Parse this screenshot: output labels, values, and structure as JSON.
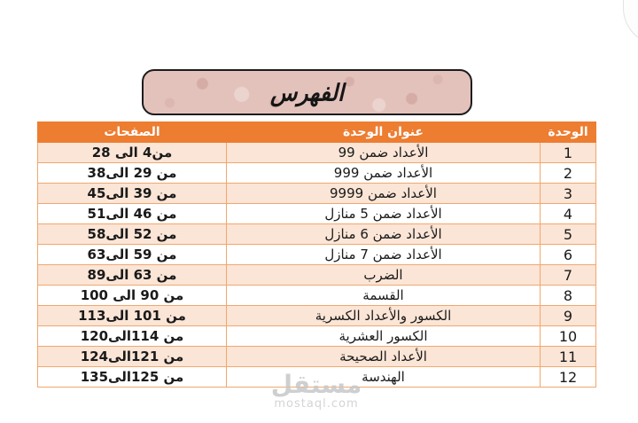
{
  "title_box": {
    "label": "الفهرس",
    "background": "#e3c2bb",
    "border_color": "#1c1c1c"
  },
  "table": {
    "accent_color": "#ED7D31",
    "band_color": "#FBE5D6",
    "border_color": "#F1A76E",
    "headers": {
      "unit": "الوحدة",
      "title": "عنوان الوحدة",
      "pages": "الصفحات"
    },
    "rows": [
      {
        "unit": "1",
        "title": "الأعداد ضمن 99",
        "pages": "من4 الى 28"
      },
      {
        "unit": "2",
        "title": "الأعداد ضمن 999",
        "pages": "من 29 الى38"
      },
      {
        "unit": "3",
        "title": "الأعداد ضمن 9999",
        "pages": "من 39 الى45"
      },
      {
        "unit": "4",
        "title": "الأعداد ضمن 5 منازل",
        "pages": "من 46 الى51"
      },
      {
        "unit": "5",
        "title": "الأعداد ضمن 6 منازل",
        "pages": "من 52 الى58"
      },
      {
        "unit": "6",
        "title": "الأعداد ضمن 7 منازل",
        "pages": "من 59 الى63"
      },
      {
        "unit": "7",
        "title": "الضرب",
        "pages": "من 63 الى89"
      },
      {
        "unit": "8",
        "title": "القسمة",
        "pages": "من 90 الى 100"
      },
      {
        "unit": "9",
        "title": "الكسور والأعداد الكسرية",
        "pages": "من 101 الى113"
      },
      {
        "unit": "10",
        "title": "الكسور العشرية",
        "pages": "من 114الى120"
      },
      {
        "unit": "11",
        "title": "الأعداد الصحيحة",
        "pages": "من 121الى124"
      },
      {
        "unit": "12",
        "title": "الهندسة",
        "pages": "من 125الى135"
      }
    ]
  },
  "watermark": {
    "brand": "مستقل",
    "domain": "mostaql.com"
  }
}
